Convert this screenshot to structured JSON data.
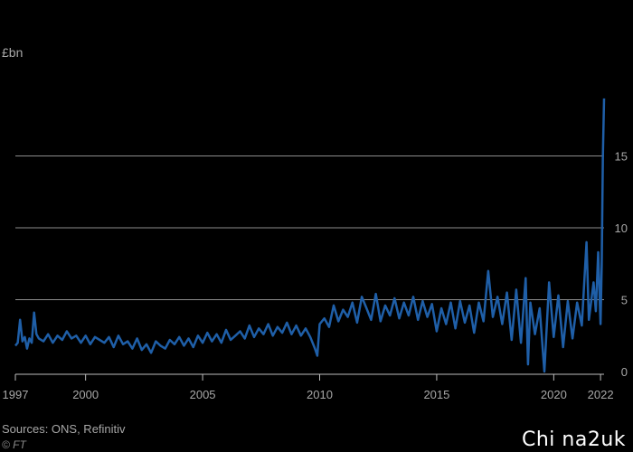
{
  "chart_data": {
    "type": "line",
    "ylabel": "£bn",
    "title": "",
    "xlabel": "",
    "ylim": [
      0,
      20
    ],
    "xlim": [
      1997,
      2022.15
    ],
    "yticks": [
      0,
      5,
      10,
      15
    ],
    "xticks": [
      1997,
      2000,
      2005,
      2010,
      2015,
      2020,
      2022
    ],
    "grid": true,
    "line_color": "#1f5fa8",
    "series": [
      {
        "points": [
          [
            1997.0,
            1.8
          ],
          [
            1997.1,
            2.0
          ],
          [
            1997.2,
            3.6
          ],
          [
            1997.3,
            2.1
          ],
          [
            1997.4,
            2.4
          ],
          [
            1997.5,
            1.6
          ],
          [
            1997.6,
            2.3
          ],
          [
            1997.7,
            2.0
          ],
          [
            1997.8,
            4.1
          ],
          [
            1997.9,
            2.6
          ],
          [
            1998.0,
            2.3
          ],
          [
            1998.2,
            2.1
          ],
          [
            1998.4,
            2.6
          ],
          [
            1998.6,
            2.0
          ],
          [
            1998.8,
            2.5
          ],
          [
            1999.0,
            2.2
          ],
          [
            1999.2,
            2.8
          ],
          [
            1999.4,
            2.3
          ],
          [
            1999.6,
            2.5
          ],
          [
            1999.8,
            2.0
          ],
          [
            2000.0,
            2.5
          ],
          [
            2000.2,
            1.9
          ],
          [
            2000.4,
            2.4
          ],
          [
            2000.6,
            2.2
          ],
          [
            2000.8,
            2.0
          ],
          [
            2001.0,
            2.4
          ],
          [
            2001.2,
            1.7
          ],
          [
            2001.4,
            2.5
          ],
          [
            2001.6,
            1.9
          ],
          [
            2001.8,
            2.1
          ],
          [
            2002.0,
            1.6
          ],
          [
            2002.2,
            2.3
          ],
          [
            2002.4,
            1.5
          ],
          [
            2002.6,
            1.9
          ],
          [
            2002.8,
            1.3
          ],
          [
            2003.0,
            2.1
          ],
          [
            2003.2,
            1.8
          ],
          [
            2003.4,
            1.6
          ],
          [
            2003.6,
            2.2
          ],
          [
            2003.8,
            1.9
          ],
          [
            2004.0,
            2.4
          ],
          [
            2004.2,
            1.8
          ],
          [
            2004.4,
            2.3
          ],
          [
            2004.6,
            1.7
          ],
          [
            2004.8,
            2.5
          ],
          [
            2005.0,
            2.0
          ],
          [
            2005.2,
            2.7
          ],
          [
            2005.4,
            2.1
          ],
          [
            2005.6,
            2.6
          ],
          [
            2005.8,
            2.0
          ],
          [
            2006.0,
            2.9
          ],
          [
            2006.2,
            2.2
          ],
          [
            2006.4,
            2.5
          ],
          [
            2006.6,
            2.8
          ],
          [
            2006.8,
            2.3
          ],
          [
            2007.0,
            3.2
          ],
          [
            2007.2,
            2.4
          ],
          [
            2007.4,
            3.0
          ],
          [
            2007.6,
            2.6
          ],
          [
            2007.8,
            3.3
          ],
          [
            2008.0,
            2.5
          ],
          [
            2008.2,
            3.1
          ],
          [
            2008.4,
            2.7
          ],
          [
            2008.6,
            3.4
          ],
          [
            2008.8,
            2.6
          ],
          [
            2009.0,
            3.2
          ],
          [
            2009.2,
            2.5
          ],
          [
            2009.4,
            3.0
          ],
          [
            2009.6,
            2.4
          ],
          [
            2009.8,
            1.6
          ],
          [
            2009.9,
            1.1
          ],
          [
            2010.0,
            3.3
          ],
          [
            2010.2,
            3.7
          ],
          [
            2010.4,
            3.1
          ],
          [
            2010.6,
            4.6
          ],
          [
            2010.8,
            3.5
          ],
          [
            2011.0,
            4.3
          ],
          [
            2011.2,
            3.8
          ],
          [
            2011.4,
            4.8
          ],
          [
            2011.6,
            3.4
          ],
          [
            2011.8,
            5.2
          ],
          [
            2012.0,
            4.4
          ],
          [
            2012.2,
            3.6
          ],
          [
            2012.4,
            5.4
          ],
          [
            2012.6,
            3.5
          ],
          [
            2012.8,
            4.6
          ],
          [
            2013.0,
            3.9
          ],
          [
            2013.2,
            5.1
          ],
          [
            2013.4,
            3.7
          ],
          [
            2013.6,
            4.8
          ],
          [
            2013.8,
            3.9
          ],
          [
            2014.0,
            5.2
          ],
          [
            2014.2,
            3.6
          ],
          [
            2014.4,
            4.9
          ],
          [
            2014.6,
            3.8
          ],
          [
            2014.8,
            4.7
          ],
          [
            2015.0,
            2.8
          ],
          [
            2015.2,
            4.4
          ],
          [
            2015.4,
            3.3
          ],
          [
            2015.6,
            4.8
          ],
          [
            2015.8,
            3.0
          ],
          [
            2016.0,
            4.9
          ],
          [
            2016.2,
            3.4
          ],
          [
            2016.4,
            4.6
          ],
          [
            2016.6,
            2.7
          ],
          [
            2016.8,
            4.8
          ],
          [
            2017.0,
            3.5
          ],
          [
            2017.2,
            7.0
          ],
          [
            2017.4,
            3.8
          ],
          [
            2017.6,
            5.2
          ],
          [
            2017.8,
            3.3
          ],
          [
            2018.0,
            5.5
          ],
          [
            2018.2,
            2.2
          ],
          [
            2018.4,
            5.7
          ],
          [
            2018.6,
            2.0
          ],
          [
            2018.8,
            6.5
          ],
          [
            2018.9,
            0.5
          ],
          [
            2019.0,
            4.8
          ],
          [
            2019.2,
            2.6
          ],
          [
            2019.4,
            4.4
          ],
          [
            2019.6,
            0.0
          ],
          [
            2019.8,
            6.2
          ],
          [
            2020.0,
            2.4
          ],
          [
            2020.2,
            5.3
          ],
          [
            2020.4,
            1.7
          ],
          [
            2020.6,
            4.9
          ],
          [
            2020.8,
            2.3
          ],
          [
            2021.0,
            4.8
          ],
          [
            2021.2,
            3.2
          ],
          [
            2021.4,
            9.0
          ],
          [
            2021.5,
            3.6
          ],
          [
            2021.7,
            6.2
          ],
          [
            2021.8,
            4.2
          ],
          [
            2021.9,
            8.3
          ],
          [
            2022.0,
            3.3
          ],
          [
            2022.05,
            7.4
          ],
          [
            2022.1,
            15.0
          ],
          [
            2022.15,
            19.0
          ]
        ]
      }
    ]
  },
  "footer": {
    "source": "Sources: ONS, Refinitiv",
    "credit": "© FT",
    "watermark": "Chi na2uk"
  }
}
